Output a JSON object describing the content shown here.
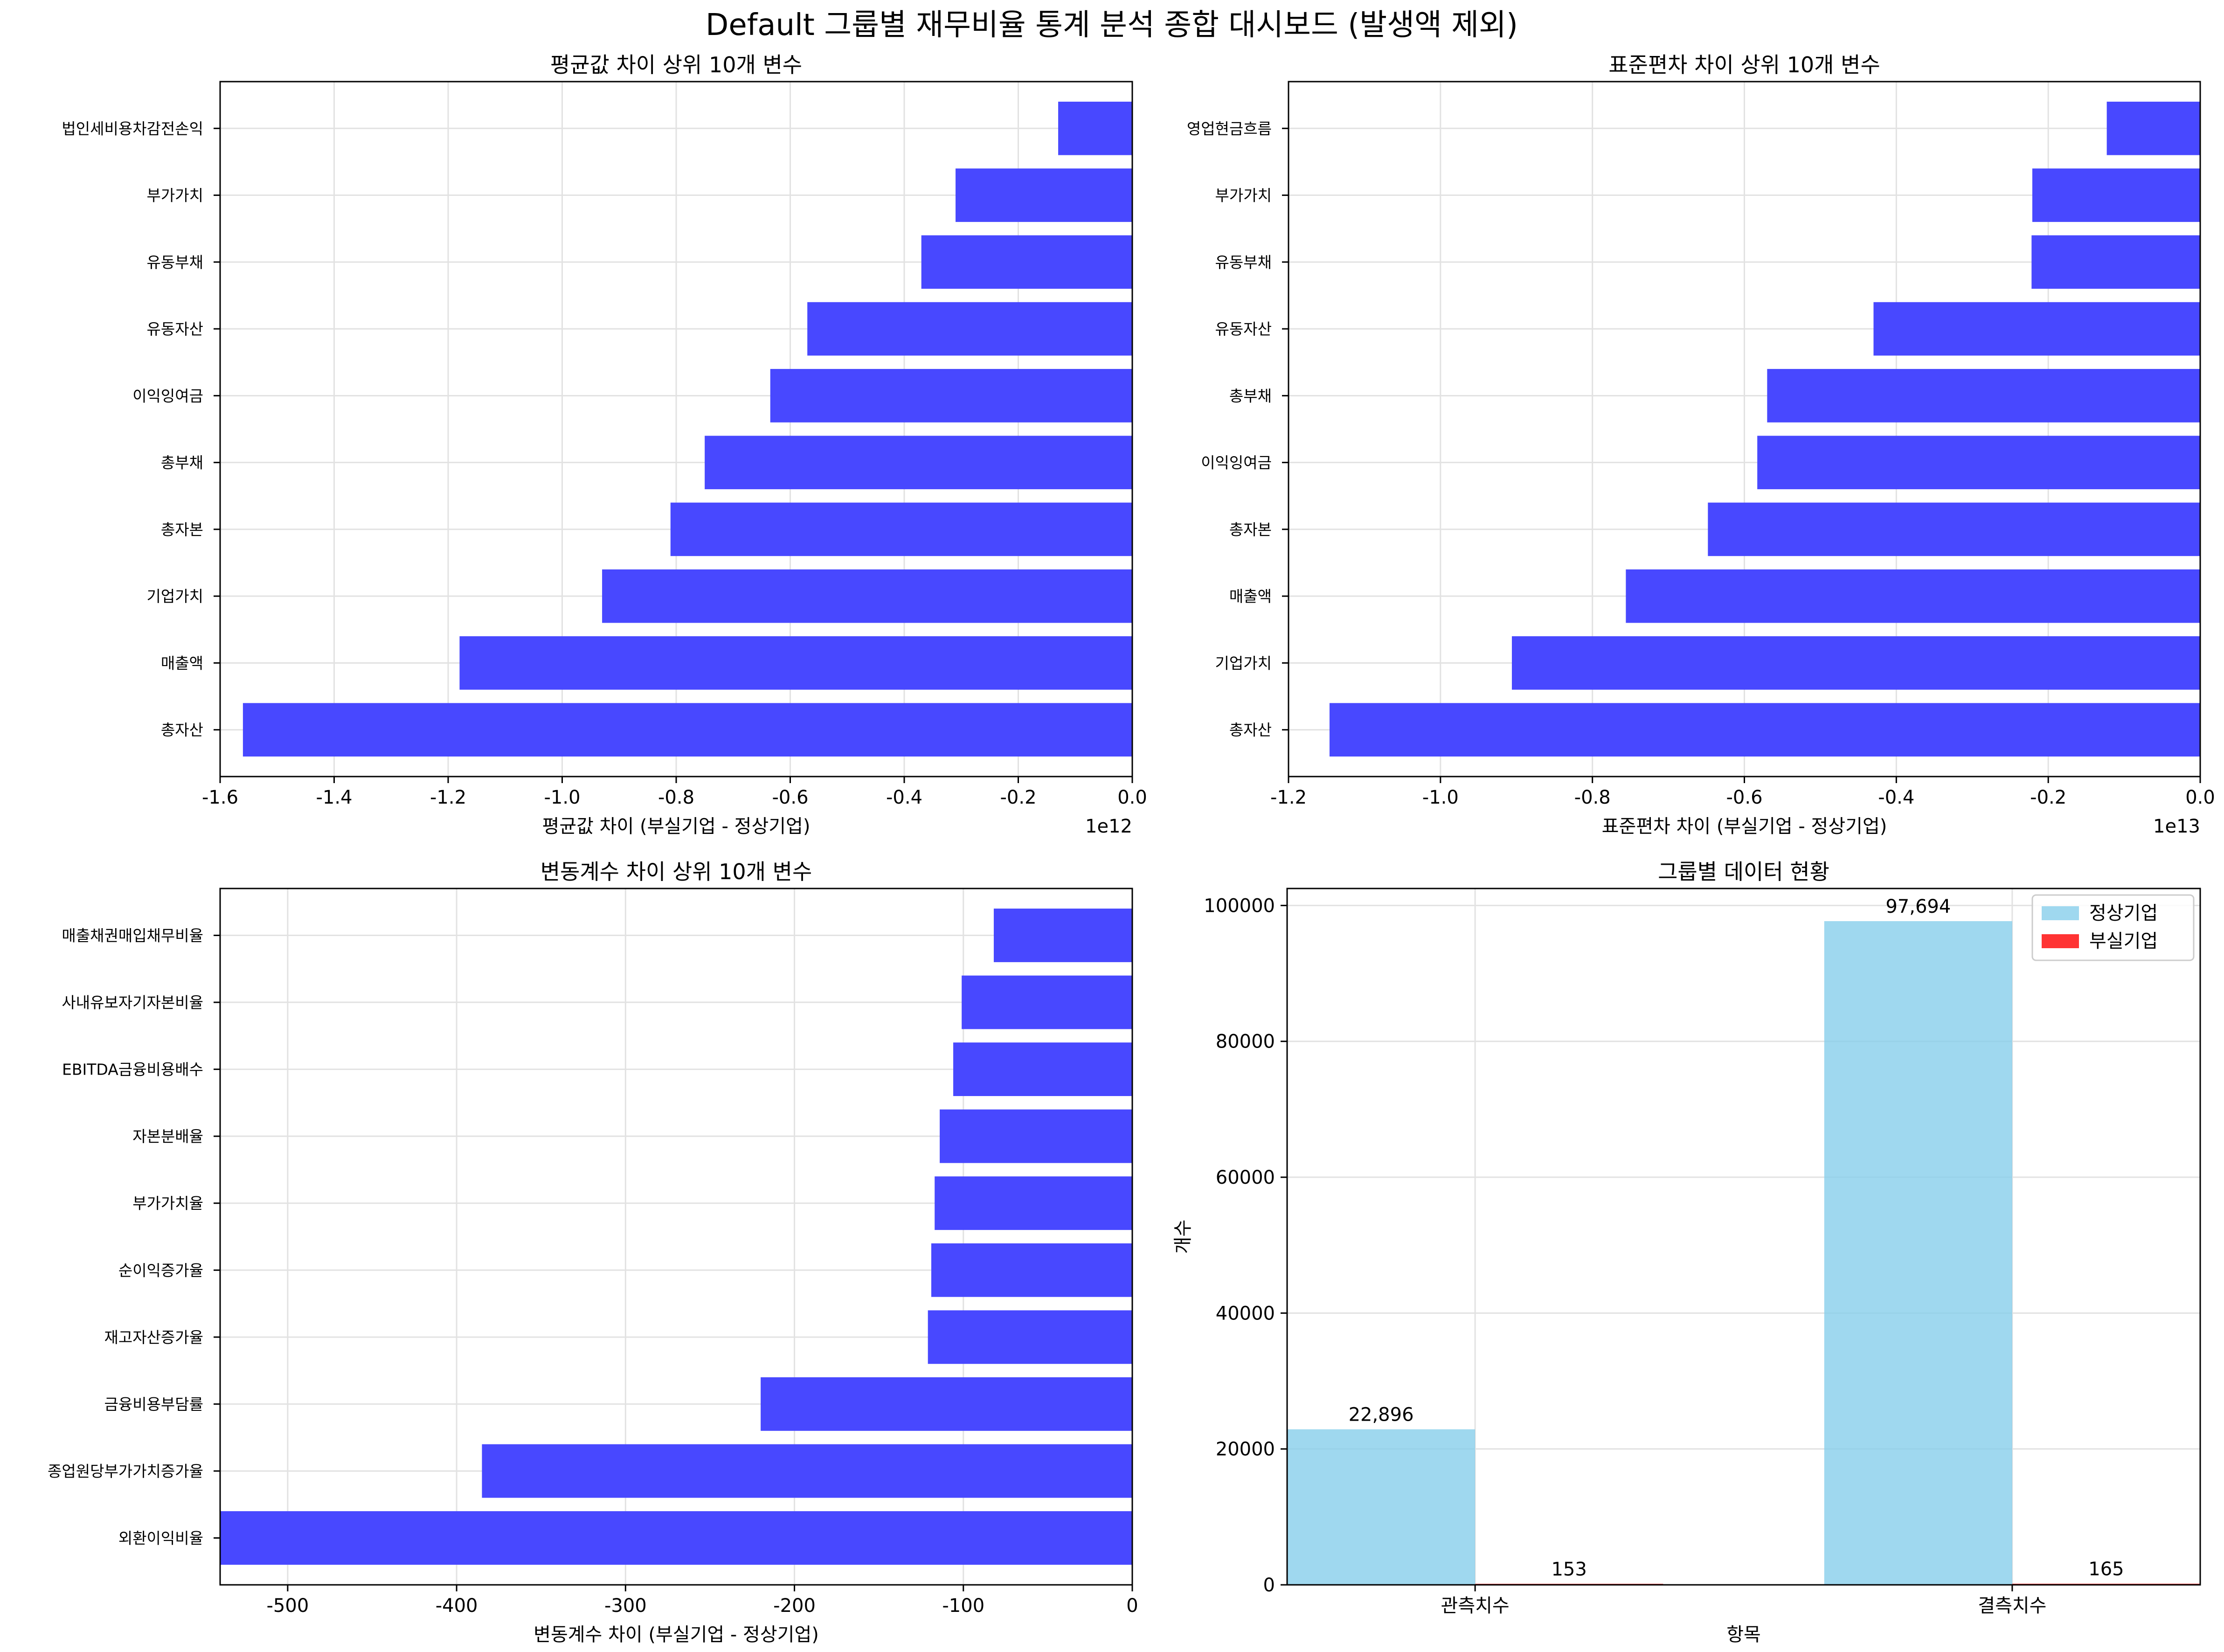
{
  "suptitle": "Default 그룹별 재무비율 통계 분석 종합 대시보드 (발생액 제외)",
  "chart_data": [
    {
      "type": "bar",
      "orientation": "horizontal",
      "title": "평균값 차이 상위 10개 변수",
      "xlabel": "평균값 차이 (부실기업 - 정상기업)",
      "ylabel": "",
      "offset_text": "1e12",
      "categories": [
        "법인세비용차감전손익",
        "부가가치",
        "유동부채",
        "유동자산",
        "이익잉여금",
        "총부채",
        "총자본",
        "기업가치",
        "매출액",
        "총자산"
      ],
      "values": [
        -0.13,
        -0.31,
        -0.37,
        -0.57,
        -0.635,
        -0.75,
        -0.81,
        -0.93,
        -1.18,
        -1.56
      ],
      "xlim": [
        -1.6,
        0.0
      ],
      "xticks": [
        -1.6,
        -1.4,
        -1.2,
        -1.0,
        -0.8,
        -0.6,
        -0.4,
        -0.2,
        0.0
      ],
      "xtick_labels": [
        "-1.6",
        "-1.4",
        "-1.2",
        "-1.0",
        "-0.8",
        "-0.6",
        "-0.4",
        "-0.2",
        "0.0"
      ],
      "color": "#4848ff",
      "grid": true
    },
    {
      "type": "bar",
      "orientation": "horizontal",
      "title": "표준편차 차이 상위 10개 변수",
      "xlabel": "표준편차 차이 (부실기업 - 정상기업)",
      "ylabel": "",
      "offset_text": "1e13",
      "categories": [
        "영업현금흐름",
        "부가가치",
        "유동부채",
        "유동자산",
        "총부채",
        "이익잉여금",
        "총자본",
        "매출액",
        "기업가치",
        "총자산"
      ],
      "values": [
        -0.123,
        -0.221,
        -0.222,
        -0.43,
        -0.57,
        -0.583,
        -0.648,
        -0.756,
        -0.906,
        -1.146
      ],
      "xlim": [
        -1.2,
        0.0
      ],
      "xticks": [
        -1.2,
        -1.0,
        -0.8,
        -0.6,
        -0.4,
        -0.2,
        0.0
      ],
      "xtick_labels": [
        "-1.2",
        "-1.0",
        "-0.8",
        "-0.6",
        "-0.4",
        "-0.2",
        "0.0"
      ],
      "color": "#4848ff",
      "grid": true
    },
    {
      "type": "bar",
      "orientation": "horizontal",
      "title": "변동계수 차이 상위 10개 변수",
      "xlabel": "변동계수 차이 (부실기업 - 정상기업)",
      "ylabel": "",
      "offset_text": "",
      "categories": [
        "매출채권매입채무비율",
        "사내유보자기자본비율",
        "EBITDA금융비용배수",
        "자본분배율",
        "부가가치율",
        "순이익증가율",
        "재고자산증가율",
        "금융비용부담률",
        "종업원당부가가치증가율",
        "외환이익비율"
      ],
      "values": [
        -82,
        -101,
        -106,
        -114,
        -117,
        -119,
        -121,
        -220,
        -385,
        -540
      ],
      "xlim": [
        -540,
        0
      ],
      "xticks": [
        -500,
        -400,
        -300,
        -200,
        -100,
        0
      ],
      "xtick_labels": [
        "-500",
        "-400",
        "-300",
        "-200",
        "-100",
        "0"
      ],
      "color": "#4848ff",
      "grid": true
    },
    {
      "type": "bar",
      "orientation": "vertical",
      "title": "그룹별 데이터 현황",
      "xlabel": "항목",
      "ylabel": "개수",
      "categories": [
        "관측치수",
        "결측치수"
      ],
      "series": [
        {
          "name": "정상기업",
          "values": [
            22896,
            97694
          ],
          "labels": [
            "22,896",
            "97,694"
          ],
          "color": "#87ceeb"
        },
        {
          "name": "부실기업",
          "values": [
            153,
            165
          ],
          "labels": [
            "153",
            "165"
          ],
          "color": "#ff0000"
        }
      ],
      "ylim": [
        0,
        100000
      ],
      "yticks": [
        0,
        20000,
        40000,
        60000,
        80000,
        100000
      ],
      "ytick_labels": [
        "0",
        "20000",
        "40000",
        "60000",
        "80000",
        "100000"
      ],
      "legend": "top-right",
      "grid": true
    }
  ]
}
